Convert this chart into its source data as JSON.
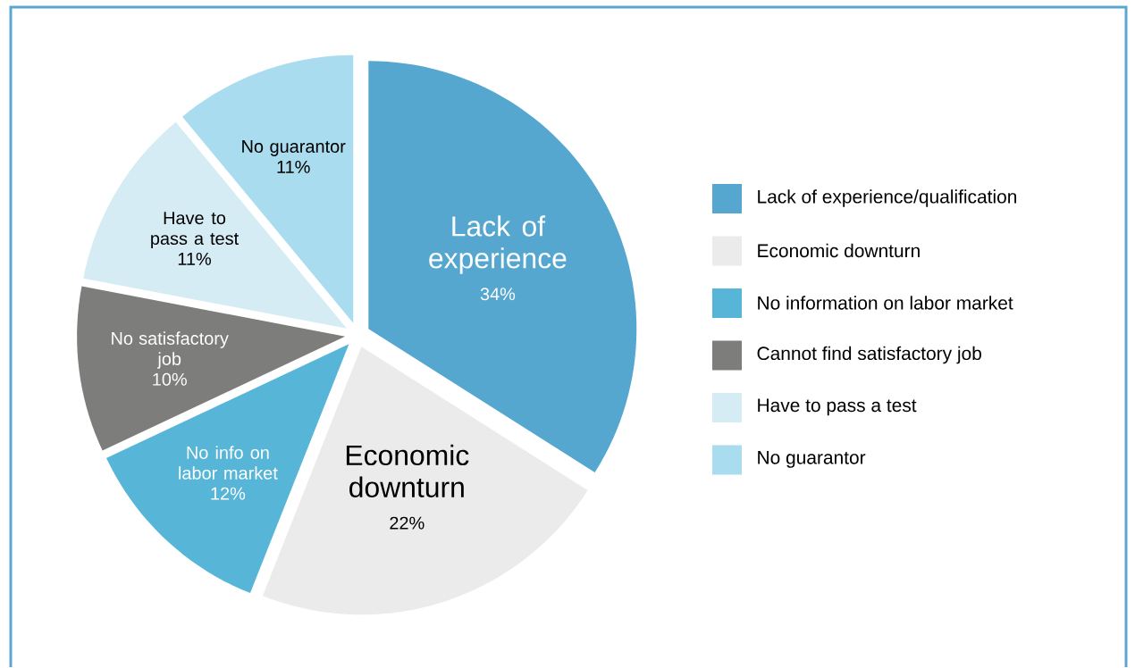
{
  "chart_data": {
    "type": "pie",
    "categories": [
      "Lack of experience/qualification",
      "Economic downturn",
      "No information on labor market",
      "Cannot find satisfactory job",
      "Have to pass a test",
      "No guarantor"
    ],
    "values": [
      34,
      22,
      12,
      10,
      11,
      11
    ],
    "value_labels": [
      "34%",
      "22%",
      "12%",
      "10%",
      "11%",
      "11%"
    ],
    "colors": [
      "#55a7cf",
      "#ebebeb",
      "#57b6d7",
      "#7d7d7c",
      "#d6ecf4",
      "#a9dcee"
    ],
    "annotations": [
      "Lack of experience",
      "Economic downturn",
      "No info on labor market",
      "No satisfactory job",
      "Have to pass a test",
      "No guarantor"
    ],
    "legend": "right"
  }
}
